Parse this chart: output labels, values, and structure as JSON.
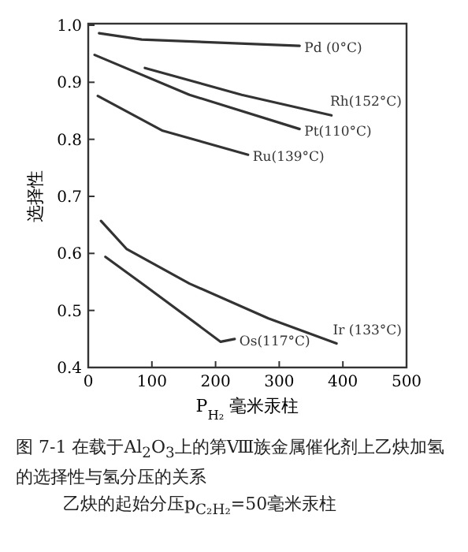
{
  "chart_data": {
    "type": "line",
    "title": "图 7-1 在载于Al$_{2}$O$_{3}$上的第Ⅷ族金属催化剂上乙炔加氢的选择性与氢分压的关系",
    "annotations": [
      "乙炔的起始分压p$_{C₂H₂}$=50毫米汞柱"
    ],
    "xlabel": "P$_{H₂}$ 毫米汞柱",
    "ylabel": "选择性",
    "xlim": [
      0,
      500
    ],
    "ylim": [
      0.4,
      1.0
    ],
    "xticks": [
      0,
      100,
      200,
      300,
      400,
      500
    ],
    "yticks": [
      {
        "value": 0.4,
        "label": "0.4"
      },
      {
        "value": 0.5,
        "label": "0.5"
      },
      {
        "value": 0.6,
        "label": "0.6"
      },
      {
        "value": 0.7,
        "label": "0.7"
      },
      {
        "value": 0.8,
        "label": "0.8"
      },
      {
        "value": 0.9,
        "label": "0.9"
      },
      {
        "value": 1.0,
        "label": "1.0"
      }
    ],
    "grid": false,
    "marker": "none",
    "line_style": "solid",
    "series": [
      {
        "name": "Pd (0°C)",
        "color": "#333333",
        "x": [
          17,
          84,
          332
        ],
        "values": [
          0.986,
          0.975,
          0.964
        ]
      },
      {
        "name": "Rh(152°C)",
        "color": "#333333",
        "x": [
          89,
          241,
          382
        ],
        "values": [
          0.925,
          0.878,
          0.842
        ]
      },
      {
        "name": "Pt(110°C)",
        "color": "#333333",
        "x": [
          10,
          159,
          332
        ],
        "values": [
          0.948,
          0.878,
          0.818
        ]
      },
      {
        "name": "Ru(139°C)",
        "color": "#333333",
        "x": [
          15,
          117,
          251
        ],
        "values": [
          0.876,
          0.815,
          0.773
        ]
      },
      {
        "name": "Ir (133°C)",
        "color": "#333333",
        "x": [
          20,
          60,
          159,
          283,
          390
        ],
        "values": [
          0.657,
          0.608,
          0.547,
          0.486,
          0.442
        ]
      },
      {
        "name": "Os(117°C)",
        "color": "#333333",
        "x": [
          27,
          92,
          208,
          230
        ],
        "values": [
          0.594,
          0.541,
          0.445,
          0.45
        ]
      }
    ]
  }
}
